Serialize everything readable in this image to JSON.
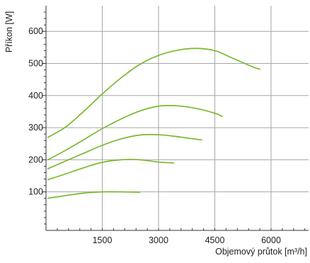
{
  "chart_data": {
    "type": "line",
    "xlabel": "Objemový průtok [m³/h]",
    "ylabel": "Příkon [W]",
    "xlim": [
      0,
      7000
    ],
    "ylim": [
      -20,
      680
    ],
    "x_ticks": [
      1500,
      3000,
      4500,
      6000
    ],
    "y_ticks": [
      100,
      200,
      300,
      400,
      500,
      600
    ],
    "grid": true,
    "colors": {
      "series": "#7cb82f",
      "grid": "#a6a6a6",
      "axis": "#333333",
      "text": "#222222"
    },
    "series": [
      {
        "x": [
          50,
          500,
          1000,
          1500,
          2000,
          2500
        ],
        "values": [
          80,
          88,
          96,
          100,
          100,
          99
        ]
      },
      {
        "x": [
          50,
          500,
          1000,
          1500,
          2000,
          2500,
          3000,
          3400
        ],
        "values": [
          138,
          155,
          175,
          192,
          200,
          200,
          193,
          190
        ]
      },
      {
        "x": [
          50,
          500,
          1000,
          1500,
          2000,
          2500,
          3000,
          3500,
          4000,
          4150
        ],
        "values": [
          172,
          195,
          220,
          245,
          265,
          277,
          278,
          272,
          264,
          262
        ]
      },
      {
        "x": [
          50,
          500,
          1000,
          1500,
          2000,
          2500,
          3000,
          3500,
          4000,
          4500,
          4700
        ],
        "values": [
          200,
          228,
          262,
          297,
          327,
          352,
          367,
          368,
          360,
          345,
          335
        ]
      },
      {
        "x": [
          50,
          500,
          1000,
          1500,
          2000,
          2500,
          3000,
          3500,
          4000,
          4500,
          5000,
          5500,
          5700
        ],
        "values": [
          270,
          300,
          350,
          405,
          455,
          497,
          525,
          541,
          547,
          540,
          515,
          490,
          482
        ]
      }
    ]
  }
}
